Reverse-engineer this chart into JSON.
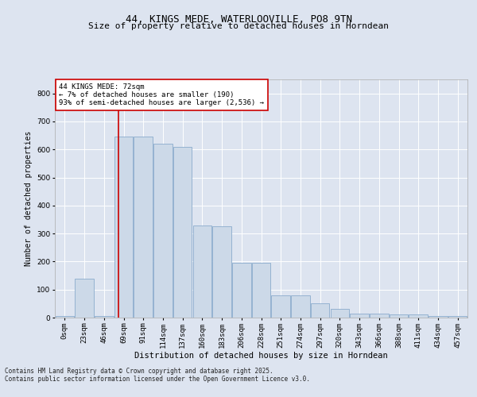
{
  "title_line1": "44, KINGS MEDE, WATERLOOVILLE, PO8 9TN",
  "title_line2": "Size of property relative to detached houses in Horndean",
  "xlabel": "Distribution of detached houses by size in Horndean",
  "ylabel": "Number of detached properties",
  "bar_values": [
    5,
    140,
    5,
    645,
    645,
    620,
    610,
    330,
    325,
    195,
    195,
    80,
    80,
    50,
    30,
    15,
    15,
    10,
    10,
    5,
    5
  ],
  "bar_labels": [
    "0sqm",
    "23sqm",
    "46sqm",
    "69sqm",
    "91sqm",
    "114sqm",
    "137sqm",
    "160sqm",
    "183sqm",
    "206sqm",
    "228sqm",
    "251sqm",
    "274sqm",
    "297sqm",
    "320sqm",
    "343sqm",
    "366sqm",
    "388sqm",
    "411sqm",
    "434sqm",
    "457sqm"
  ],
  "bar_color": "#ccd9e8",
  "bar_edge_color": "#8aabcc",
  "vline_index": 2.72,
  "vline_color": "#cc0000",
  "annotation_text": "44 KINGS MEDE: 72sqm\n← 7% of detached houses are smaller (190)\n93% of semi-detached houses are larger (2,536) →",
  "annotation_box_facecolor": "#ffffff",
  "annotation_box_edgecolor": "#cc0000",
  "ylim": [
    0,
    850
  ],
  "yticks": [
    0,
    100,
    200,
    300,
    400,
    500,
    600,
    700,
    800
  ],
  "background_color": "#dde4f0",
  "plot_bg_color": "#dde4f0",
  "grid_color": "#ffffff",
  "footer_line1": "Contains HM Land Registry data © Crown copyright and database right 2025.",
  "footer_line2": "Contains public sector information licensed under the Open Government Licence v3.0.",
  "title_fontsize": 9,
  "subtitle_fontsize": 8,
  "axis_label_fontsize": 7,
  "tick_fontsize": 6.5,
  "annotation_fontsize": 6.5,
  "footer_fontsize": 5.5
}
